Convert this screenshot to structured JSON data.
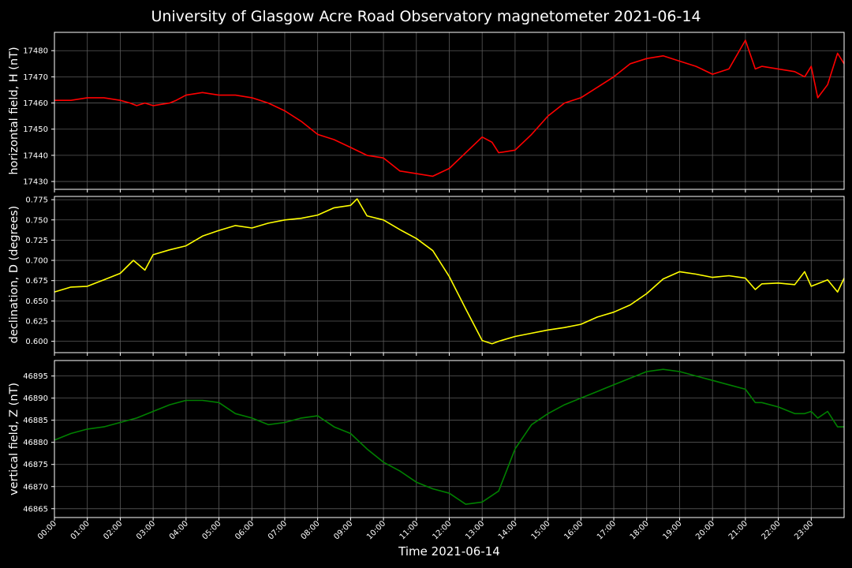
{
  "title": "University of Glasgow Acre Road Observatory magnetometer 2021-06-14",
  "colors": {
    "background": "#000000",
    "grid": "#5a5a5a",
    "axes": "#ffffff"
  },
  "chart_data": [
    {
      "type": "line",
      "ylabel": "horizontal field, H (nT)",
      "color": "#ff0000",
      "ylim": [
        17427,
        17487
      ],
      "yticks": [
        17430,
        17440,
        17450,
        17460,
        17470,
        17480
      ],
      "x_unit": "hours",
      "x": [
        0,
        0.5,
        1,
        1.5,
        2,
        2.3,
        2.5,
        2.75,
        3,
        3.5,
        3.7,
        4,
        4.5,
        5,
        5.5,
        6,
        6.5,
        7,
        7.5,
        8,
        8.5,
        9,
        9.5,
        10,
        10.5,
        11,
        11.5,
        12,
        12.5,
        13,
        13.3,
        13.5,
        14,
        14.5,
        15,
        15.5,
        16,
        16.5,
        17,
        17.5,
        18,
        18.5,
        19,
        19.5,
        20,
        20.5,
        21,
        21.3,
        21.5,
        22,
        22.5,
        22.8,
        23,
        23.2,
        23.5,
        23.8,
        24
      ],
      "values": [
        17461,
        17461,
        17462,
        17462,
        17461,
        17460,
        17459,
        17460,
        17459,
        17460,
        17461,
        17463,
        17464,
        17463,
        17463,
        17462,
        17460,
        17457,
        17453,
        17448,
        17446,
        17443,
        17440,
        17439,
        17434,
        17433,
        17432,
        17435,
        17441,
        17447,
        17445,
        17441,
        17442,
        17448,
        17455,
        17460,
        17462,
        17466,
        17470,
        17475,
        17477,
        17478,
        17476,
        17474,
        17471,
        17473,
        17484,
        17473,
        17474,
        17473,
        17472,
        17470,
        17474,
        17462,
        17467,
        17479,
        17475
      ]
    },
    {
      "type": "line",
      "ylabel": "declination, D (degrees)",
      "color": "#ffff00",
      "ylim": [
        0.586,
        0.779
      ],
      "yticks": [
        0.6,
        0.625,
        0.65,
        0.675,
        0.7,
        0.725,
        0.75,
        0.775
      ],
      "x_unit": "hours",
      "x": [
        0,
        0.5,
        1,
        1.5,
        2,
        2.4,
        2.75,
        3,
        3.5,
        4,
        4.5,
        5,
        5.5,
        6,
        6.5,
        7,
        7.5,
        8,
        8.5,
        9,
        9.2,
        9.5,
        10,
        10.5,
        11,
        11.5,
        12,
        12.5,
        13,
        13.3,
        13.5,
        14,
        14.5,
        15,
        15.5,
        16,
        16.5,
        17,
        17.5,
        18,
        18.5,
        19,
        19.5,
        20,
        20.5,
        21,
        21.3,
        21.5,
        22,
        22.5,
        22.8,
        23,
        23.5,
        23.8,
        24
      ],
      "values": [
        0.661,
        0.667,
        0.668,
        0.676,
        0.684,
        0.7,
        0.688,
        0.707,
        0.713,
        0.718,
        0.73,
        0.737,
        0.743,
        0.74,
        0.746,
        0.75,
        0.752,
        0.756,
        0.765,
        0.768,
        0.776,
        0.755,
        0.75,
        0.738,
        0.727,
        0.712,
        0.68,
        0.64,
        0.601,
        0.597,
        0.6,
        0.606,
        0.61,
        0.614,
        0.617,
        0.621,
        0.63,
        0.636,
        0.645,
        0.659,
        0.677,
        0.686,
        0.683,
        0.679,
        0.681,
        0.678,
        0.664,
        0.671,
        0.672,
        0.67,
        0.686,
        0.668,
        0.676,
        0.661,
        0.678
      ]
    },
    {
      "type": "line",
      "ylabel": "vertical field, Z (nT)",
      "color": "#008000",
      "ylim": [
        46863,
        46898.5
      ],
      "yticks": [
        46865,
        46870,
        46875,
        46880,
        46885,
        46890,
        46895
      ],
      "x_unit": "hours",
      "x": [
        0,
        0.5,
        1,
        1.5,
        2,
        2.5,
        3,
        3.5,
        4,
        4.5,
        5,
        5.5,
        6,
        6.5,
        7,
        7.5,
        8,
        8.5,
        9,
        9.5,
        10,
        10.5,
        11,
        11.5,
        12,
        12.5,
        13,
        13.5,
        14,
        14.5,
        15,
        15.5,
        16,
        16.5,
        17,
        17.5,
        18,
        18.5,
        19,
        19.5,
        20,
        20.5,
        21,
        21.3,
        21.5,
        22,
        22.5,
        22.8,
        23,
        23.2,
        23.5,
        23.8,
        24
      ],
      "values": [
        46880.5,
        46882,
        46883,
        46883.5,
        46884.5,
        46885.5,
        46887,
        46888.5,
        46889.5,
        46889.5,
        46889,
        46886.5,
        46885.5,
        46884,
        46884.5,
        46885.5,
        46886,
        46883.5,
        46882,
        46878.5,
        46875.5,
        46873.5,
        46871,
        46869.5,
        46868.5,
        46866,
        46866.5,
        46869,
        46878.5,
        46884,
        46886.5,
        46888.5,
        46890,
        46891.5,
        46893,
        46894.5,
        46896,
        46896.5,
        46896,
        46895,
        46894,
        46893,
        46892,
        46889,
        46889,
        46888,
        46886.5,
        46886.5,
        46887,
        46885.5,
        46887,
        46883.5,
        46883.5
      ]
    }
  ],
  "xaxis": {
    "label": "Time 2021-06-14",
    "ticks": [
      "00:00",
      "01:00",
      "02:00",
      "03:00",
      "04:00",
      "05:00",
      "06:00",
      "07:00",
      "08:00",
      "09:00",
      "10:00",
      "11:00",
      "12:00",
      "13:00",
      "14:00",
      "15:00",
      "16:00",
      "17:00",
      "18:00",
      "19:00",
      "20:00",
      "21:00",
      "22:00",
      "23:00"
    ],
    "range_hours": [
      0,
      24
    ]
  }
}
